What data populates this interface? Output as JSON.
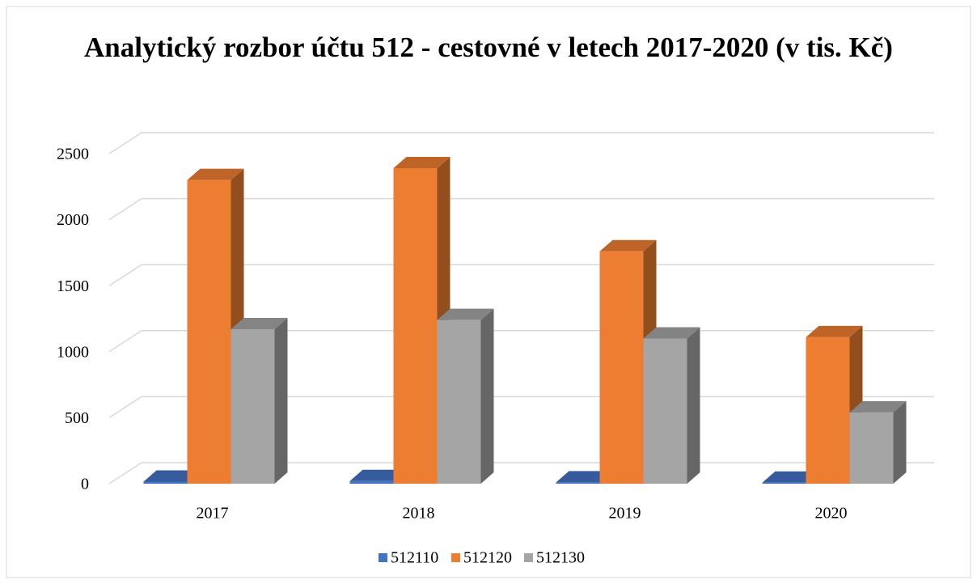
{
  "chart_data": {
    "type": "bar3d",
    "title": "Analytický rozbor účtu 512 - cestovné v letech 2017-2020 (v tis. Kč)",
    "categories": [
      "2017",
      "2018",
      "2019",
      "2020"
    ],
    "series": [
      {
        "name": "512110",
        "color": "#4472c4",
        "values": [
          15,
          20,
          10,
          8
        ]
      },
      {
        "name": "512120",
        "color": "#ed7d31",
        "values": [
          2300,
          2390,
          1760,
          1110
        ]
      },
      {
        "name": "512130",
        "color": "#a5a5a5",
        "values": [
          1170,
          1240,
          1100,
          540
        ]
      }
    ],
    "ylim": [
      0,
      2500
    ],
    "yticks": [
      0,
      500,
      1000,
      1500,
      2000,
      2500
    ],
    "grid": true,
    "legend": "bottom"
  }
}
